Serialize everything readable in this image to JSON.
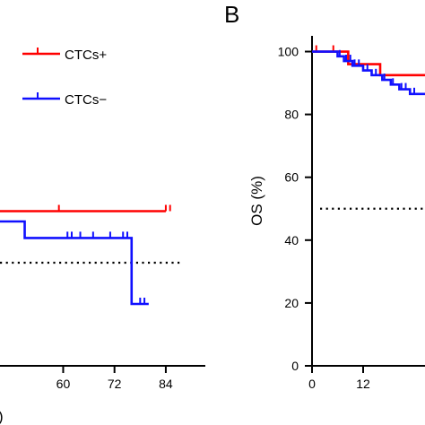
{
  "panel_labels": {
    "right": "B",
    "bottom_left_fragment": ")"
  },
  "colors": {
    "positive": "#ff0000",
    "negative": "#1010ff",
    "reference": "#000000"
  },
  "chart_data": [
    {
      "panel": "left (cropped)",
      "type": "line",
      "style": "kaplan-meier step curves",
      "x_ticks": [
        60,
        72,
        84
      ],
      "x_tick_labels": [
        "60",
        "72",
        "84"
      ],
      "xlim": [
        36,
        88
      ],
      "ylim": [
        25,
        105
      ],
      "reference_line": {
        "y": 50,
        "style": "dotted"
      },
      "legend": {
        "placement": "top-right",
        "entries": [
          "CTCs+",
          "CTCs−"
        ]
      },
      "series": [
        {
          "name": "CTCs+",
          "color": "#ff0000",
          "steps": [
            [
              36,
              62.5
            ],
            [
              84,
              62.5
            ]
          ],
          "censor_x": [
            59,
            84,
            85
          ]
        },
        {
          "name": "CTCs−",
          "color": "#1010ff",
          "steps": [
            [
              36,
              60
            ],
            [
              51,
              60
            ],
            [
              51,
              56
            ],
            [
              76,
              56
            ],
            [
              76,
              40
            ],
            [
              80,
              40
            ]
          ],
          "censor_x": [
            51,
            61,
            62,
            64,
            67,
            71,
            74,
            75,
            78,
            79
          ]
        }
      ]
    },
    {
      "panel": "B (cropped)",
      "type": "line",
      "style": "kaplan-meier step curves",
      "ylabel": "OS (%)",
      "y_ticks": [
        0,
        20,
        40,
        60,
        80,
        100
      ],
      "y_tick_labels": [
        "0",
        "20",
        "40",
        "60",
        "80",
        "100"
      ],
      "x_ticks": [
        0,
        12
      ],
      "x_tick_labels": [
        "0",
        "12"
      ],
      "xlim": [
        0,
        28
      ],
      "ylim": [
        0,
        105
      ],
      "reference_line": {
        "y": 50,
        "style": "dotted"
      },
      "series": [
        {
          "name": "CTCs+",
          "color": "#ff0000",
          "steps": [
            [
              0,
              100
            ],
            [
              8.5,
              100
            ],
            [
              8.5,
              96
            ],
            [
              16,
              96
            ],
            [
              16,
              92.5
            ],
            [
              28,
              92.5
            ]
          ],
          "censor_x": [
            1,
            5
          ]
        },
        {
          "name": "CTCs−",
          "color": "#1010ff",
          "steps": [
            [
              0,
              100
            ],
            [
              6,
              100
            ],
            [
              6,
              98.5
            ],
            [
              7.5,
              98.5
            ],
            [
              7.5,
              97
            ],
            [
              9.5,
              97
            ],
            [
              9.5,
              95.5
            ],
            [
              12,
              95.5
            ],
            [
              12,
              94
            ],
            [
              14,
              94
            ],
            [
              14,
              92.5
            ],
            [
              16.5,
              92.5
            ],
            [
              16.5,
              91
            ],
            [
              18.5,
              91
            ],
            [
              18.5,
              89.5
            ],
            [
              20.5,
              89.5
            ],
            [
              20.5,
              88
            ],
            [
              23,
              88
            ],
            [
              23,
              86.5
            ],
            [
              28,
              86.5
            ]
          ],
          "censor_x": [
            6.5,
            8,
            9,
            10,
            11,
            13,
            15,
            17,
            19,
            21,
            22,
            24
          ]
        }
      ]
    }
  ]
}
